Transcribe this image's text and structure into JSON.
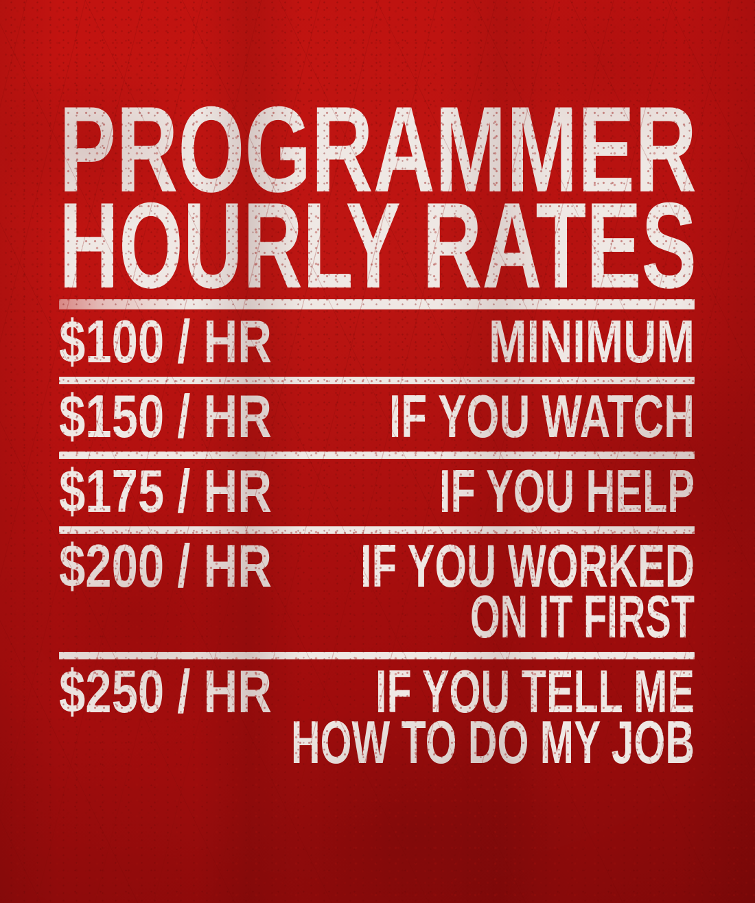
{
  "title": {
    "line1": "PROGRAMMER",
    "line2": "HOURLY RATES"
  },
  "rates": [
    {
      "rate": "$100 / HR",
      "label_lines": [
        "MINIMUM"
      ]
    },
    {
      "rate": "$150 / HR",
      "label_lines": [
        "IF YOU WATCH"
      ]
    },
    {
      "rate": "$175 / HR",
      "label_lines": [
        "IF YOU HELP"
      ]
    },
    {
      "rate": "$200 / HR",
      "label_lines": [
        "IF YOU WORKED",
        "ON IT FIRST"
      ]
    },
    {
      "rate": "$250 / HR",
      "label_lines": [
        "IF YOU TELL ME",
        "HOW TO DO MY JOB"
      ]
    }
  ],
  "colors": {
    "background_red": "#b7100f",
    "background_red_bright": "#c31310",
    "background_red_dark": "#8b0a0a",
    "ink_white": "#efe8e4"
  }
}
